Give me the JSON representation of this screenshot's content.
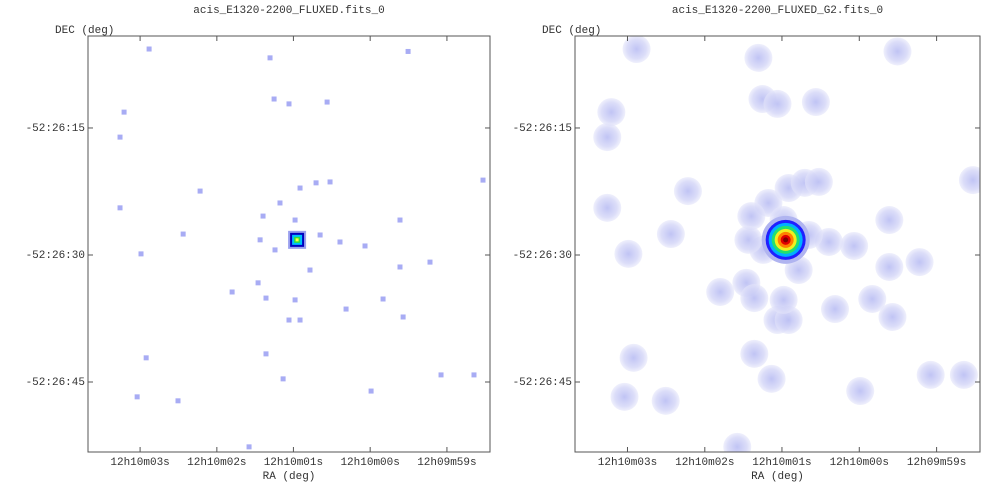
{
  "chart_data": [
    {
      "type": "image",
      "title": "acis_E1320-2200_FLUXED.fits_0",
      "x_label": "RA (deg)",
      "y_label": "DEC (deg)",
      "xlim": [
        182.51533,
        182.49349
      ],
      "ylim": [
        -52.448129,
        -52.434483
      ],
      "xticks": [
        {
          "value": 182.5125,
          "label": "12h10m03s"
        },
        {
          "value": 182.50833,
          "label": "12h10m02s"
        },
        {
          "value": 182.50417,
          "label": "12h10m01s"
        },
        {
          "value": 182.5,
          "label": "12h10m00s"
        },
        {
          "value": 182.49583,
          "label": "12h09m59s"
        }
      ],
      "yticks": [
        {
          "value": -52.4375,
          "label": "-52:26:15"
        },
        {
          "value": -52.441667,
          "label": "-52:26:30"
        },
        {
          "value": -52.445833,
          "label": "-52:26:45"
        }
      ],
      "color": "#a8acf4",
      "x": [
        182.51201,
        182.50544,
        182.51337,
        182.51359,
        182.50522,
        182.50441,
        182.50234,
        182.50924,
        182.51359,
        182.51016,
        182.51245,
        182.51217,
        182.51266,
        182.51044,
        182.50658,
        182.5075,
        182.50609,
        182.50566,
        182.50381,
        182.50294,
        182.50218,
        182.5049,
        182.50582,
        182.50408,
        182.50164,
        182.50028,
        182.49838,
        182.49675,
        182.49838,
        182.4993,
        182.49821,
        182.50131,
        182.50441,
        182.50381,
        182.50566,
        182.50473,
        182.49995,
        182.49615,
        182.49436,
        182.49387,
        182.49794,
        182.50408,
        182.50327,
        182.50517,
        182.50272,
        182.50598
      ],
      "y": [
        -52.43491,
        -52.4352,
        -52.43698,
        -52.4378,
        -52.43655,
        -52.43671,
        -52.43665,
        -52.43957,
        -52.44012,
        -52.44098,
        -52.44163,
        -52.44504,
        -52.44632,
        -52.44645,
        -52.44796,
        -52.44288,
        -52.44258,
        -52.44308,
        -52.43947,
        -52.4393,
        -52.43927,
        -52.43996,
        -52.44039,
        -52.44052,
        -52.44124,
        -52.44137,
        -52.44052,
        -52.4419,
        -52.44206,
        -52.44311,
        -52.4437,
        -52.44344,
        -52.4438,
        -52.4438,
        -52.44491,
        -52.44573,
        -52.44613,
        -52.4456,
        -52.4456,
        -52.43921,
        -52.43499,
        -52.44314,
        -52.44216,
        -52.4415,
        -52.44101,
        -52.44117
      ],
      "source": {
        "x": 182.50397,
        "y": -52.44117
      }
    },
    {
      "type": "smoothed-image",
      "title": "acis_E1320-2200_FLUXED_G2.fits_0",
      "x_label": "RA (deg)",
      "y_label": "DEC (deg)",
      "xlim": [
        182.51533,
        182.49349
      ],
      "ylim": [
        -52.448129,
        -52.434483
      ],
      "xticks": [
        {
          "value": 182.5125,
          "label": "12h10m03s"
        },
        {
          "value": 182.50833,
          "label": "12h10m02s"
        },
        {
          "value": 182.50417,
          "label": "12h10m01s"
        },
        {
          "value": 182.5,
          "label": "12h10m00s"
        },
        {
          "value": 182.49583,
          "label": "12h09m59s"
        }
      ],
      "yticks": [
        {
          "value": -52.4375,
          "label": "-52:26:15"
        },
        {
          "value": -52.441667,
          "label": "-52:26:30"
        },
        {
          "value": -52.445833,
          "label": "-52:26:45"
        }
      ],
      "color": "#c9ccf5",
      "x": [
        182.51201,
        182.50544,
        182.51337,
        182.51359,
        182.50522,
        182.50441,
        182.50234,
        182.50924,
        182.51359,
        182.51016,
        182.51245,
        182.51217,
        182.51266,
        182.51044,
        182.50658,
        182.5075,
        182.50609,
        182.50566,
        182.50381,
        182.50294,
        182.50218,
        182.5049,
        182.50582,
        182.50408,
        182.50164,
        182.50028,
        182.49838,
        182.49675,
        182.49838,
        182.4993,
        182.49821,
        182.50131,
        182.50441,
        182.50381,
        182.50566,
        182.50473,
        182.49995,
        182.49615,
        182.49436,
        182.49387,
        182.49794,
        182.50408,
        182.50327,
        182.50517,
        182.50272,
        182.50598
      ],
      "y": [
        -52.43491,
        -52.4352,
        -52.43698,
        -52.4378,
        -52.43655,
        -52.43671,
        -52.43665,
        -52.43957,
        -52.44012,
        -52.44098,
        -52.44163,
        -52.44504,
        -52.44632,
        -52.44645,
        -52.44796,
        -52.44288,
        -52.44258,
        -52.44308,
        -52.43947,
        -52.4393,
        -52.43927,
        -52.43996,
        -52.44039,
        -52.44052,
        -52.44124,
        -52.44137,
        -52.44052,
        -52.4419,
        -52.44206,
        -52.44311,
        -52.4437,
        -52.44344,
        -52.4438,
        -52.4438,
        -52.44491,
        -52.44573,
        -52.44613,
        -52.4456,
        -52.4456,
        -52.43921,
        -52.43499,
        -52.44314,
        -52.44216,
        -52.4415,
        -52.44101,
        -52.44117
      ],
      "source": {
        "x": 182.50397,
        "y": -52.44117
      }
    }
  ]
}
